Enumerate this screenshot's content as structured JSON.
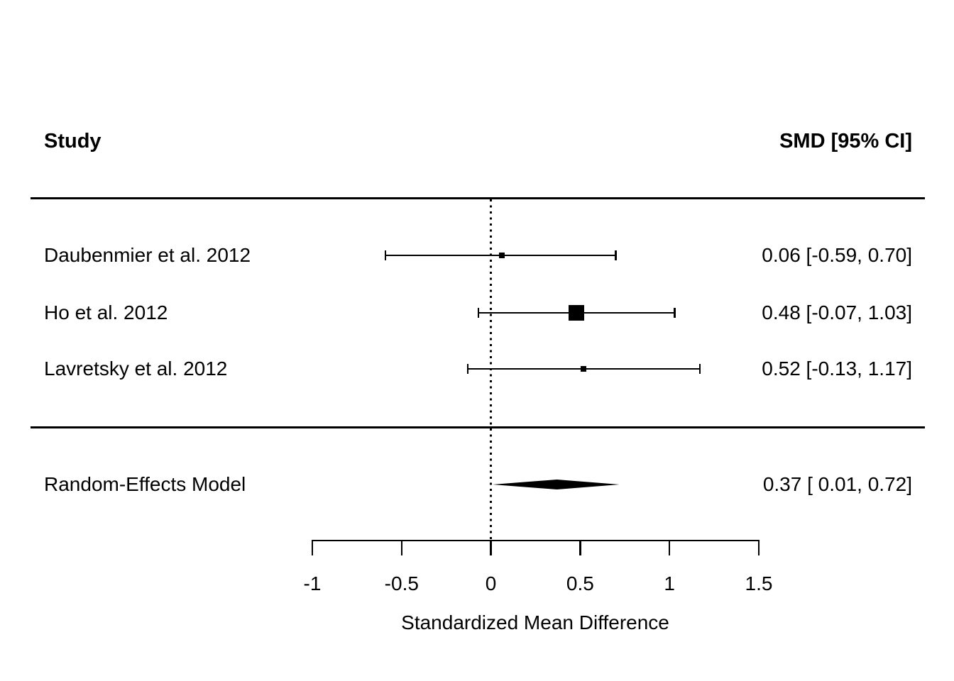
{
  "header": {
    "study": "Study",
    "smd": "SMD [95% CI]"
  },
  "colors": {
    "foreground": "#000000",
    "background": "#ffffff"
  },
  "chart_data": {
    "type": "forest",
    "title": "",
    "xlabel": "Standardized Mean Difference",
    "ylabel": "",
    "xlim": [
      -1,
      1.5
    ],
    "x_ticks": [
      -1,
      -0.5,
      0,
      0.5,
      1,
      1.5
    ],
    "x_tick_labels": [
      "-1",
      "-0.5",
      "0",
      "0.5",
      "1",
      "1.5"
    ],
    "reference_line_x": 0,
    "grid": false,
    "legend": false,
    "studies": [
      {
        "label": "Daubenmier et al. 2012",
        "estimate": 0.06,
        "ci_lower": -0.59,
        "ci_upper": 0.7,
        "annotation": "0.06 [-0.59, 0.70]",
        "marker_size_px": 8
      },
      {
        "label": "Ho et al. 2012",
        "estimate": 0.48,
        "ci_lower": -0.07,
        "ci_upper": 1.03,
        "annotation": "0.48 [-0.07, 1.03]",
        "marker_size_px": 22
      },
      {
        "label": "Lavretsky et al. 2012",
        "estimate": 0.52,
        "ci_lower": -0.13,
        "ci_upper": 1.17,
        "annotation": "0.52 [-0.13, 1.17]",
        "marker_size_px": 8
      }
    ],
    "summary": {
      "label": "Random-Effects Model",
      "estimate": 0.37,
      "ci_lower": 0.01,
      "ci_upper": 0.72,
      "annotation": "0.37 [ 0.01, 0.72]"
    }
  }
}
